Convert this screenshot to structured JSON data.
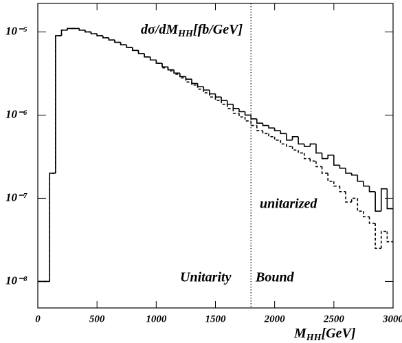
{
  "chart_data": {
    "type": "histogram",
    "title": [
      "dσ/dM",
      "HH",
      "[fb/GeV]"
    ],
    "x_label": [
      "M",
      "HH",
      "[GeV]"
    ],
    "annotations": [
      "unitarized",
      "Unitarity",
      "Bound"
    ],
    "vline": 1800,
    "log_y": true,
    "bins": [
      0,
      50,
      100,
      150,
      200,
      250,
      300,
      350,
      400,
      450,
      500,
      550,
      600,
      650,
      700,
      750,
      800,
      850,
      900,
      950,
      1000,
      1050,
      1100,
      1150,
      1200,
      1250,
      1300,
      1350,
      1400,
      1450,
      1500,
      1550,
      1600,
      1650,
      1700,
      1750,
      1800,
      1850,
      1900,
      1950,
      2000,
      2050,
      2100,
      2150,
      2200,
      2250,
      2300,
      2350,
      2400,
      2450,
      2500,
      2550,
      2600,
      2650,
      2700,
      2750,
      2800,
      2850,
      2900,
      2950,
      3000
    ],
    "series": [
      {
        "color": "#000000",
        "style": "solid",
        "values": [
          1e-08,
          1e-08,
          2e-07,
          9e-06,
          1.05e-05,
          1.1e-05,
          1.1e-05,
          1.05e-05,
          1e-05,
          9.5e-06,
          9e-06,
          8.5e-06,
          8e-06,
          7.5e-06,
          7e-06,
          6.5e-06,
          6e-06,
          5.5e-06,
          5e-06,
          4.6e-06,
          4.2e-06,
          3.8e-06,
          3.5e-06,
          3.2e-06,
          2.9e-06,
          2.7e-06,
          2.4e-06,
          2.2e-06,
          2e-06,
          1.8e-06,
          1.65e-06,
          1.5e-06,
          1.35e-06,
          1.2e-06,
          1.1e-06,
          1e-06,
          9e-07,
          8e-07,
          7.5e-07,
          7e-07,
          6.5e-07,
          6e-07,
          5e-07,
          5.5e-07,
          4.5e-07,
          4.2e-07,
          4.5e-07,
          3.5e-07,
          3e-07,
          3.3e-07,
          2.5e-07,
          2.3e-07,
          2e-07,
          1.9e-07,
          1.6e-07,
          1.4e-07,
          1.2e-07,
          7e-08,
          1.3e-07,
          7.5e-08
        ]
      },
      {
        "color": "#000000",
        "style": "dashed",
        "values": [
          1e-08,
          1e-08,
          2e-07,
          9e-06,
          1.05e-05,
          1.1e-05,
          1.1e-05,
          1.05e-05,
          1e-05,
          9.5e-06,
          9e-06,
          8.5e-06,
          8e-06,
          7.5e-06,
          7e-06,
          6.5e-06,
          6e-06,
          5.5e-06,
          5e-06,
          4.6e-06,
          4.2e-06,
          3.7e-06,
          3.4e-06,
          3.1e-06,
          2.8e-06,
          2.5e-06,
          2.3e-06,
          2.05e-06,
          1.85e-06,
          1.65e-06,
          1.5e-06,
          1.35e-06,
          1.2e-06,
          1.05e-06,
          9.5e-07,
          8.5e-07,
          7.5e-07,
          6.5e-07,
          6e-07,
          5.5e-07,
          5e-07,
          4.5e-07,
          4.2e-07,
          3.8e-07,
          3.5e-07,
          3e-07,
          2.8e-07,
          2.4e-07,
          2e-07,
          1.6e-07,
          1.4e-07,
          1.2e-07,
          9e-08,
          1e-07,
          7e-08,
          6e-08,
          5e-08,
          2.5e-08,
          4e-08,
          3e-08
        ]
      }
    ],
    "xlim": [
      0,
      3000
    ],
    "xticks": [
      0,
      500,
      1000,
      1500,
      2000,
      2500,
      3000
    ],
    "ylim": [
      4.8e-09,
      2.2e-05
    ],
    "yticks": [
      {
        "value": 1e-08,
        "label": "10⁻⁸"
      },
      {
        "value": 1e-07,
        "label": "10⁻⁷"
      },
      {
        "value": 1e-06,
        "label": "10⁻⁶"
      },
      {
        "value": 1e-05,
        "label": "10⁻⁵"
      }
    ]
  }
}
